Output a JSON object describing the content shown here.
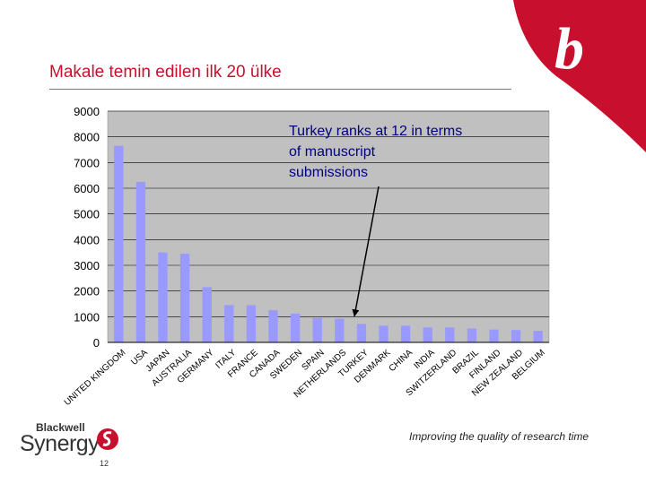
{
  "slide": {
    "title": "Makale temin edilen ilk 20 ülke",
    "footer_tagline": "Improving the quality of research time",
    "page_number": "12",
    "brand_small": "Blackwell",
    "brand_big": "Synergy",
    "brand_color": "#c8102e"
  },
  "chart_data": {
    "type": "bar",
    "categories": [
      "UNITED KINGDOM",
      "USA",
      "JAPAN",
      "AUSTRALIA",
      "GERMANY",
      "ITALY",
      "FRANCE",
      "CANADA",
      "SWEDEN",
      "SPAIN",
      "NETHERLANDS",
      "TURKEY",
      "DENMARK",
      "CHINA",
      "INDIA",
      "SWITZERLAND",
      "BRAZIL",
      "FINLAND",
      "NEW ZEALAND",
      "BELGIUM"
    ],
    "values": [
      7650,
      6250,
      3500,
      3450,
      2150,
      1450,
      1450,
      1250,
      1120,
      950,
      920,
      720,
      650,
      650,
      580,
      580,
      540,
      500,
      480,
      450
    ],
    "ylim": [
      0,
      9000
    ],
    "yticks": [
      0,
      1000,
      2000,
      3000,
      4000,
      5000,
      6000,
      7000,
      8000,
      9000
    ],
    "plot_background": "#c0c0c0",
    "bar_color": "#9999ff",
    "grid": true,
    "annotation": {
      "text_lines": [
        "Turkey ranks at 12 in terms",
        "of manuscript",
        "submissions"
      ],
      "points_to": "TURKEY",
      "color": "#000080"
    }
  }
}
